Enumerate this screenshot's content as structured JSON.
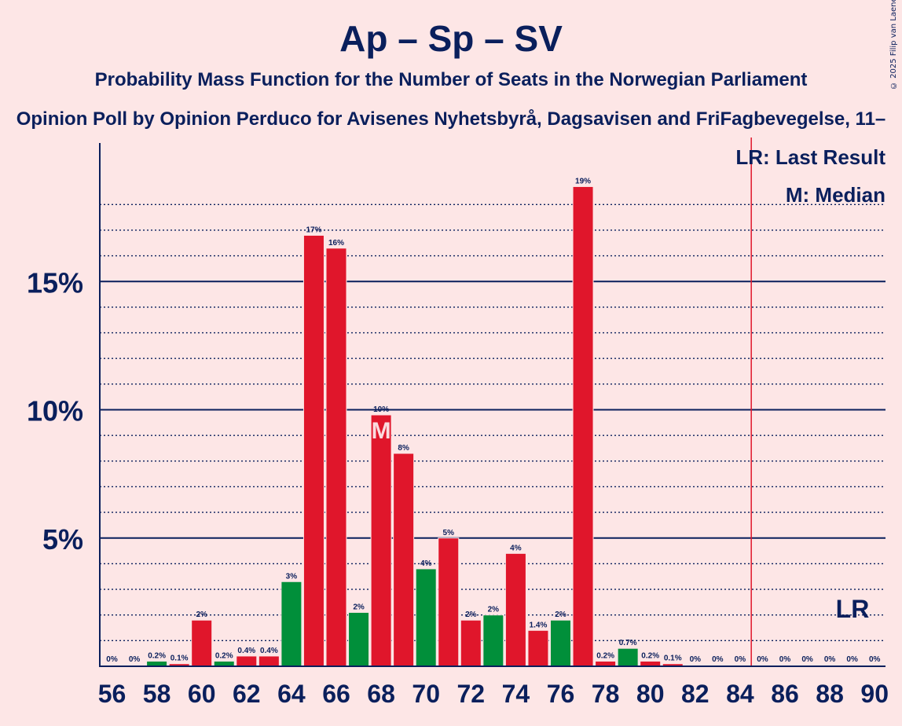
{
  "header": {
    "title": "Ap – Sp – SV",
    "subtitle": "Probability Mass Function for the Number of Seats in the Norwegian Parliament",
    "subtitle2": "Opinion Poll by Opinion Perduco for Avisenes Nyhetsbyrå, Dagsavisen and FriFagbevegelse, 11–",
    "copyright": "© 2025 Filip van Laenen"
  },
  "colors": {
    "background": "#fde6e6",
    "text": "#0a1f5c",
    "red": "#e0162b",
    "green": "#018f3a",
    "last_result_line": "#e0162b"
  },
  "chart_data": {
    "type": "bar",
    "title": "Ap – Sp – SV",
    "xlabel": "",
    "ylabel": "",
    "ylim": [
      0,
      22.5
    ],
    "yticks": [
      {
        "value": 5,
        "label": "5%"
      },
      {
        "value": 10,
        "label": "10%"
      },
      {
        "value": 15,
        "label": "15%"
      }
    ],
    "x_tick_labels": [
      "56",
      "58",
      "60",
      "62",
      "64",
      "66",
      "68",
      "70",
      "72",
      "74",
      "76",
      "78",
      "80",
      "82",
      "84",
      "86",
      "88",
      "90"
    ],
    "x": [
      56,
      57,
      58,
      59,
      60,
      61,
      62,
      63,
      64,
      65,
      66,
      67,
      68,
      69,
      70,
      71,
      72,
      73,
      74,
      75,
      76,
      77,
      78,
      79,
      80,
      81,
      82,
      83,
      84,
      85,
      86,
      87,
      88,
      89,
      90
    ],
    "values": [
      0,
      0,
      0.2,
      0.1,
      1.8,
      0.2,
      0.4,
      0.4,
      3.3,
      16.8,
      16.3,
      2.1,
      9.8,
      8.3,
      3.8,
      5.0,
      1.8,
      2.0,
      4.4,
      1.4,
      1.8,
      18.7,
      0.2,
      0.7,
      0.2,
      0.1,
      0,
      0,
      0,
      0,
      0,
      0,
      0,
      0,
      0
    ],
    "value_labels": [
      "0%",
      "0%",
      "0.2%",
      "0.1%",
      "2%",
      "0.2%",
      "0.4%",
      "0.4%",
      "3%",
      "17%",
      "16%",
      "2%",
      "10%",
      "8%",
      "4%",
      "5%",
      "2%",
      "2%",
      "4%",
      "1.4%",
      "2%",
      "19%",
      "0.2%",
      "0.7%",
      "0.2%",
      "0.1%",
      "0%",
      "0%",
      "0%",
      "0%",
      "0%",
      "0%",
      "0%",
      "0%",
      "0%"
    ],
    "bar_colors": [
      "red",
      "red",
      "green",
      "red",
      "red",
      "green",
      "red",
      "red",
      "green",
      "red",
      "red",
      "green",
      "red",
      "red",
      "green",
      "red",
      "red",
      "green",
      "red",
      "red",
      "green",
      "red",
      "red",
      "green",
      "red",
      "red",
      "red",
      "red",
      "red",
      "red",
      "red",
      "red",
      "red",
      "red",
      "red"
    ],
    "median": 68,
    "median_marker": "M",
    "last_result": 85,
    "last_result_marker": "LR",
    "legend": [
      "LR: Last Result",
      "M: Median"
    ],
    "legend_position": "top-right",
    "grid": true
  }
}
